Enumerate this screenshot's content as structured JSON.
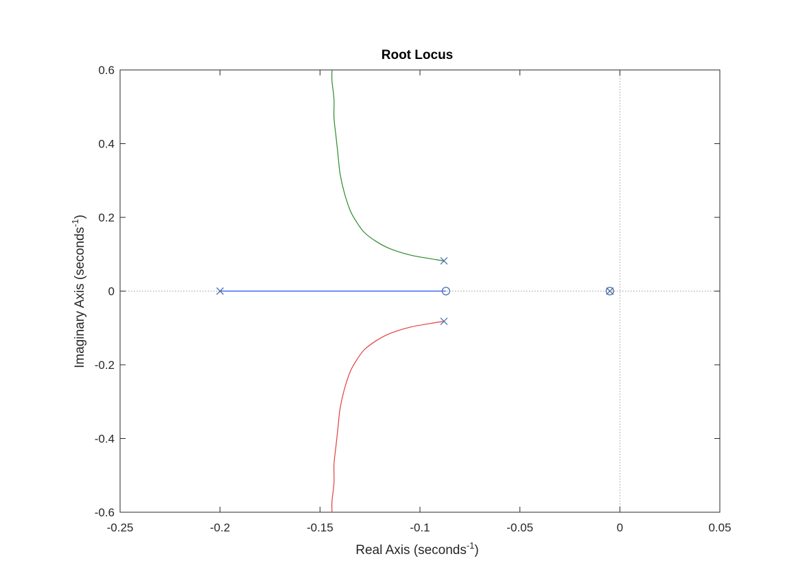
{
  "chart_data": {
    "type": "line",
    "title": "Root Locus",
    "xlabel": {
      "main": "Real Axis (seconds",
      "exp": "-1",
      "close": ")"
    },
    "ylabel": {
      "main": "Imaginary Axis (seconds",
      "exp": "-1",
      "close": ")"
    },
    "xlim": [
      -0.25,
      0.05
    ],
    "ylim": [
      -0.6,
      0.6
    ],
    "xticks": [
      -0.25,
      -0.2,
      -0.15,
      -0.1,
      -0.05,
      0,
      0.05
    ],
    "xtick_labels": [
      "-0.25",
      "-0.2",
      "-0.15",
      "-0.1",
      "-0.05",
      "0",
      "0.05"
    ],
    "yticks": [
      -0.6,
      -0.4,
      -0.2,
      0,
      0.2,
      0.4,
      0.6
    ],
    "ytick_labels": [
      "-0.6",
      "-0.4",
      "-0.2",
      "0",
      "0.2",
      "0.4",
      "0.6"
    ],
    "grid": false,
    "reference_lines": [
      "x = 0 (dotted)",
      "y = 0 (dotted)"
    ],
    "series": [
      {
        "color": "#2a8a2a",
        "x": [
          -0.088,
          -0.095,
          -0.105,
          -0.115,
          -0.122,
          -0.128,
          -0.132,
          -0.135,
          -0.138,
          -0.14,
          -0.141,
          -0.142,
          -0.143,
          -0.143,
          -0.144,
          -0.144
        ],
        "y": [
          0.082,
          0.088,
          0.098,
          0.115,
          0.135,
          0.16,
          0.19,
          0.22,
          0.27,
          0.32,
          0.37,
          0.42,
          0.47,
          0.52,
          0.57,
          0.6
        ]
      },
      {
        "color": "#e23d3d",
        "x": [
          -0.088,
          -0.095,
          -0.105,
          -0.115,
          -0.122,
          -0.128,
          -0.132,
          -0.135,
          -0.138,
          -0.14,
          -0.141,
          -0.142,
          -0.143,
          -0.143,
          -0.144,
          -0.144
        ],
        "y": [
          -0.082,
          -0.088,
          -0.098,
          -0.115,
          -0.135,
          -0.16,
          -0.19,
          -0.22,
          -0.27,
          -0.32,
          -0.37,
          -0.42,
          -0.47,
          -0.52,
          -0.57,
          -0.6
        ]
      },
      {
        "color": "#4466ee",
        "x": [
          -0.2,
          -0.087
        ],
        "y": [
          0,
          0
        ]
      }
    ],
    "poles": [
      {
        "x": -0.2,
        "y": 0
      },
      {
        "x": -0.088,
        "y": 0.082
      },
      {
        "x": -0.088,
        "y": -0.082
      },
      {
        "x": -0.005,
        "y": 0
      }
    ],
    "zeros": [
      {
        "x": -0.087,
        "y": 0
      },
      {
        "x": -0.005,
        "y": 0
      }
    ],
    "marker_color": "#4a6fa8"
  }
}
